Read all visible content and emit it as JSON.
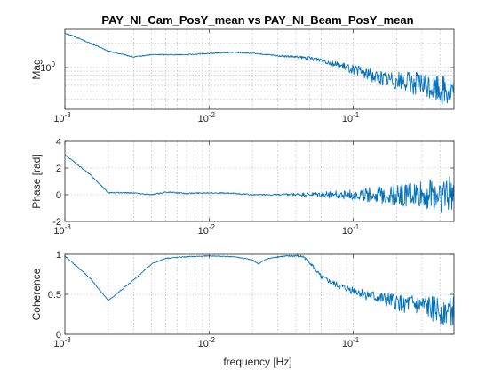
{
  "figure": {
    "title": "PAY_NI_Cam_PosY_mean vs PAY_NI_Beam_PosY_mean",
    "xlabel": "frequency [Hz]"
  },
  "chart_data": [
    {
      "type": "line",
      "name": "Mag",
      "ylabel": "Mag",
      "xscale": "log",
      "yscale": "log",
      "xlim": [
        0.001,
        0.5
      ],
      "ylim": [
        0.3,
        3
      ],
      "x_ticks": [
        {
          "base": "10",
          "exp": "-3",
          "value": 0.001
        },
        {
          "base": "10",
          "exp": "-2",
          "value": 0.01
        },
        {
          "base": "10",
          "exp": "-1",
          "value": 0.1
        }
      ],
      "y_ticks": [
        {
          "base": "10",
          "exp": "0",
          "value": 1
        }
      ],
      "grid": true,
      "color": "#0072BD",
      "x": [
        0.001,
        0.0015,
        0.002,
        0.003,
        0.004,
        0.005,
        0.007,
        0.01,
        0.015,
        0.02,
        0.025,
        0.03,
        0.04,
        0.05,
        0.06,
        0.07,
        0.08,
        0.1,
        0.12,
        0.15,
        0.2,
        0.25,
        0.3,
        0.4,
        0.5
      ],
      "y": [
        2.7,
        2.0,
        1.6,
        1.35,
        1.45,
        1.45,
        1.45,
        1.5,
        1.55,
        1.5,
        1.45,
        1.4,
        1.35,
        1.3,
        1.25,
        1.15,
        1.05,
        0.95,
        0.85,
        0.75,
        0.7,
        0.65,
        0.6,
        0.55,
        0.5
      ],
      "noise": 0.35
    },
    {
      "type": "line",
      "name": "Phase",
      "ylabel": "Phase [rad]",
      "xscale": "log",
      "yscale": "linear",
      "xlim": [
        0.001,
        0.5
      ],
      "ylim": [
        -2,
        4
      ],
      "x_ticks": [
        {
          "base": "10",
          "exp": "-3",
          "value": 0.001
        },
        {
          "base": "10",
          "exp": "-2",
          "value": 0.01
        },
        {
          "base": "10",
          "exp": "-1",
          "value": 0.1
        }
      ],
      "y_ticks": [
        {
          "label": "-2",
          "value": -2
        },
        {
          "label": "0",
          "value": 0
        },
        {
          "label": "2",
          "value": 2
        },
        {
          "label": "4",
          "value": 4
        }
      ],
      "grid": true,
      "color": "#0072BD",
      "x": [
        0.001,
        0.0015,
        0.002,
        0.003,
        0.004,
        0.005,
        0.007,
        0.01,
        0.015,
        0.02,
        0.03,
        0.04,
        0.05,
        0.07,
        0.1,
        0.15,
        0.2,
        0.3,
        0.4,
        0.5
      ],
      "y": [
        3.0,
        1.5,
        0.15,
        0.15,
        0.0,
        0.2,
        0.1,
        0.15,
        0.1,
        0.0,
        0.0,
        0.0,
        0.0,
        0.0,
        0.0,
        0.0,
        0.0,
        0.0,
        0.0,
        0.0
      ],
      "noise": 0.45
    },
    {
      "type": "line",
      "name": "Coherence",
      "ylabel": "Coherence",
      "xscale": "log",
      "yscale": "linear",
      "xlim": [
        0.001,
        0.5
      ],
      "ylim": [
        0,
        1
      ],
      "x_ticks": [
        {
          "base": "10",
          "exp": "-3",
          "value": 0.001
        },
        {
          "base": "10",
          "exp": "-2",
          "value": 0.01
        },
        {
          "base": "10",
          "exp": "-1",
          "value": 0.1
        }
      ],
      "y_ticks": [
        {
          "label": "0",
          "value": 0
        },
        {
          "label": "0.5",
          "value": 0.5
        },
        {
          "label": "1",
          "value": 1
        }
      ],
      "grid": true,
      "color": "#0072BD",
      "x": [
        0.001,
        0.0015,
        0.002,
        0.003,
        0.004,
        0.005,
        0.007,
        0.01,
        0.015,
        0.02,
        0.022,
        0.025,
        0.03,
        0.04,
        0.045,
        0.05,
        0.055,
        0.06,
        0.07,
        0.08,
        0.1,
        0.12,
        0.15,
        0.2,
        0.3,
        0.4,
        0.5
      ],
      "y": [
        0.98,
        0.7,
        0.42,
        0.68,
        0.88,
        0.95,
        0.97,
        0.98,
        0.97,
        0.93,
        0.88,
        0.94,
        0.97,
        0.98,
        0.97,
        0.9,
        0.8,
        0.72,
        0.65,
        0.6,
        0.55,
        0.5,
        0.45,
        0.4,
        0.35,
        0.3,
        0.28
      ],
      "noise": 0.35
    }
  ]
}
